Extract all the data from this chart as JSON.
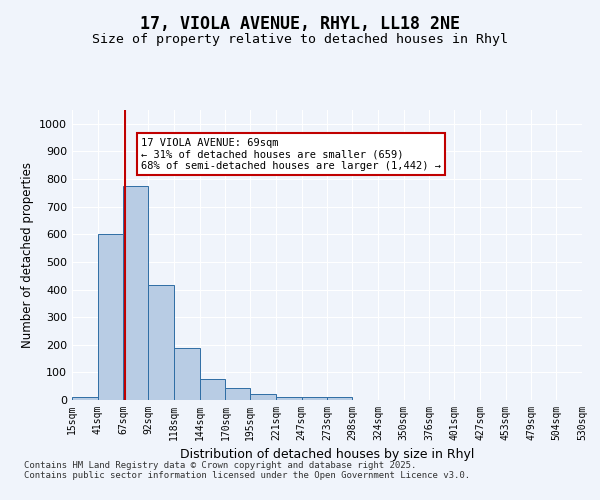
{
  "title_line1": "17, VIOLA AVENUE, RHYL, LL18 2NE",
  "title_line2": "Size of property relative to detached houses in Rhyl",
  "xlabel": "Distribution of detached houses by size in Rhyl",
  "ylabel": "Number of detached properties",
  "bar_edges": [
    15,
    41,
    67,
    92,
    118,
    144,
    170,
    195,
    221,
    247,
    273,
    298,
    324,
    350,
    376,
    401,
    427,
    453,
    479,
    504,
    530
  ],
  "bar_heights": [
    10,
    600,
    775,
    415,
    190,
    75,
    45,
    20,
    10,
    10,
    10,
    0,
    0,
    0,
    0,
    0,
    0,
    0,
    0,
    0
  ],
  "property_size": 69,
  "bar_color": "#b8cce4",
  "bar_edge_color": "#2e6da4",
  "vline_color": "#c00000",
  "annotation_text": "17 VIOLA AVENUE: 69sqm\n← 31% of detached houses are smaller (659)\n68% of semi-detached houses are larger (1,442) →",
  "annotation_box_color": "#ffffff",
  "annotation_box_edge": "#c00000",
  "ylim": [
    0,
    1050
  ],
  "yticks": [
    0,
    100,
    200,
    300,
    400,
    500,
    600,
    700,
    800,
    900,
    1000
  ],
  "tick_labels": [
    "15sqm",
    "41sqm",
    "67sqm",
    "92sqm",
    "118sqm",
    "144sqm",
    "170sqm",
    "195sqm",
    "221sqm",
    "247sqm",
    "273sqm",
    "298sqm",
    "324sqm",
    "350sqm",
    "376sqm",
    "401sqm",
    "427sqm",
    "453sqm",
    "479sqm",
    "504sqm",
    "530sqm"
  ],
  "footnote": "Contains HM Land Registry data © Crown copyright and database right 2025.\nContains public sector information licensed under the Open Government Licence v3.0.",
  "bg_color": "#f0f4fb",
  "plot_bg_color": "#f0f4fb",
  "grid_color": "#ffffff"
}
